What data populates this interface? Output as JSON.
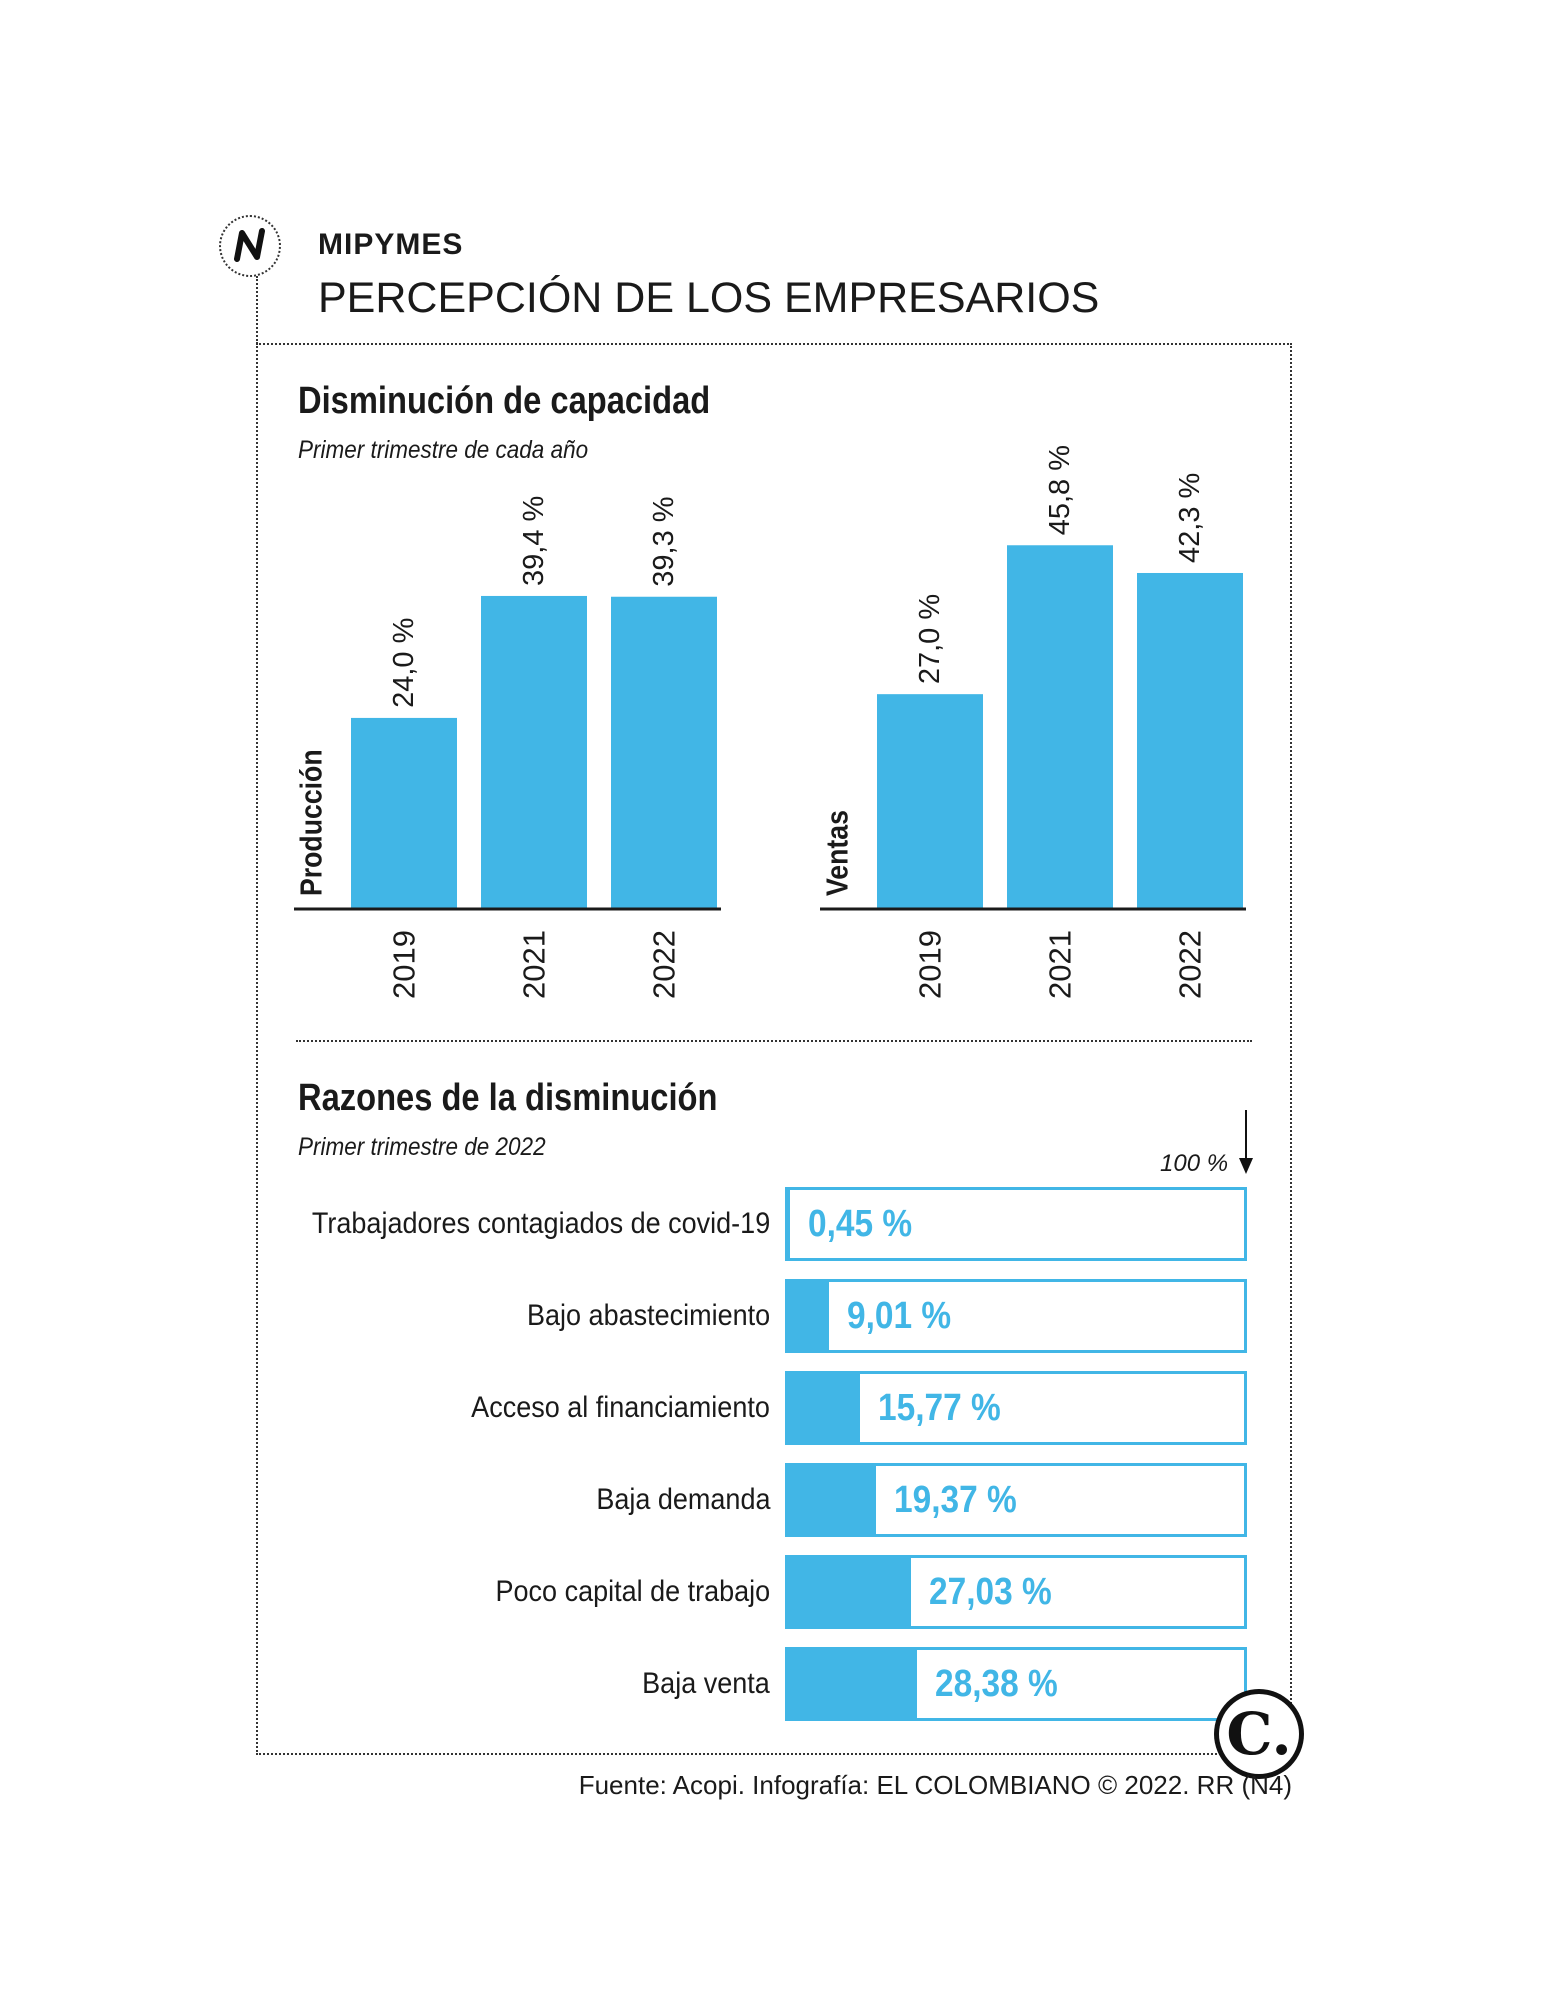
{
  "header": {
    "kicker": "MIPYMES",
    "title": "PERCEPCIÓN DE LOS EMPRESARIOS",
    "logo_icon": "n-logo-icon"
  },
  "section1": {
    "title": "Disminución de capacidad",
    "subtitle": "Primer trimestre de cada año"
  },
  "section2": {
    "title": "Razones de la disminución",
    "subtitle": "Primer trimestre de 2022",
    "max_label": "100 %"
  },
  "footer": {
    "source": "Fuente: Acopi. Infografía: EL COLOMBIANO © 2022. RR (N4)",
    "brand_mark": "C."
  },
  "colors": {
    "bar": "#41b6e6",
    "axis": "#1a1a1a"
  },
  "chart_data": [
    {
      "type": "bar",
      "ylabel": "Producción",
      "categories": [
        "2019",
        "2021",
        "2022"
      ],
      "values": [
        24.0,
        39.4,
        39.3
      ],
      "value_labels": [
        "24,0 %",
        "39,4 %",
        "39,3 %"
      ],
      "ylim": [
        0,
        50
      ]
    },
    {
      "type": "bar",
      "ylabel": "Ventas",
      "categories": [
        "2019",
        "2021",
        "2022"
      ],
      "values": [
        27.0,
        45.8,
        42.3
      ],
      "value_labels": [
        "27,0 %",
        "45,8 %",
        "42,3 %"
      ],
      "ylim": [
        0,
        50
      ]
    },
    {
      "type": "bar",
      "orientation": "horizontal",
      "categories": [
        "Trabajadores contagiados de covid-19",
        "Bajo abastecimiento",
        "Acceso al financiamiento",
        "Baja demanda",
        "Poco capital de trabajo",
        "Baja venta"
      ],
      "values": [
        0.45,
        9.01,
        15.77,
        19.37,
        27.03,
        28.38
      ],
      "value_labels": [
        "0,45 %",
        "9,01 %",
        "15,77 %",
        "19,37 %",
        "27,03 %",
        "28,38 %"
      ],
      "xlim": [
        0,
        100
      ]
    }
  ]
}
